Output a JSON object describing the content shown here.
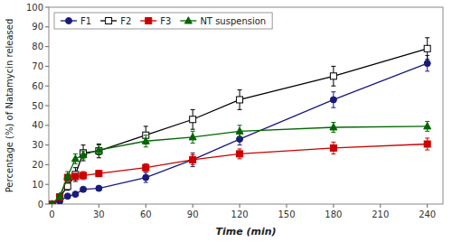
{
  "chart_data": {
    "type": "line",
    "xlabel": "Time (min)",
    "ylabel": "Percentage (%) of Natamycin released",
    "x": [
      0,
      5,
      10,
      15,
      20,
      30,
      60,
      90,
      120,
      180,
      240
    ],
    "xlim": [
      -2,
      250
    ],
    "xticks": [
      0,
      30,
      60,
      90,
      120,
      150,
      180,
      210,
      240
    ],
    "ylim": [
      0,
      100
    ],
    "yticks": [
      0,
      10,
      20,
      30,
      40,
      50,
      60,
      70,
      80,
      90,
      100
    ],
    "grid": false,
    "legend": "upper left",
    "series": [
      {
        "name": "F1",
        "color": "#1a1a7a",
        "marker": "circle",
        "values": [
          0,
          1.5,
          4.0,
          5.0,
          7.5,
          8.0,
          13.5,
          22.5,
          33.0,
          53.0,
          71.5
        ],
        "errors": [
          0,
          0.5,
          0.5,
          0.8,
          1.0,
          1.0,
          2.5,
          3.5,
          3.0,
          4.0,
          4.0
        ]
      },
      {
        "name": "F2",
        "color": "#000000",
        "marker": "square-open",
        "values": [
          0,
          3.5,
          9.0,
          15.0,
          26.0,
          27.0,
          35.0,
          43.0,
          53.0,
          65.0,
          79.0
        ],
        "errors": [
          0,
          1.0,
          2.0,
          3.5,
          4.0,
          3.5,
          4.5,
          5.0,
          5.0,
          5.0,
          5.5
        ]
      },
      {
        "name": "F3",
        "color": "#cc0000",
        "marker": "square",
        "values": [
          0,
          3.5,
          13.5,
          14.0,
          14.5,
          15.5,
          18.5,
          22.5,
          25.5,
          28.5,
          30.5
        ],
        "errors": [
          0,
          1.0,
          1.5,
          1.5,
          2.0,
          1.5,
          2.0,
          2.5,
          2.5,
          3.0,
          3.0
        ]
      },
      {
        "name": "NT suspension",
        "color": "#006600",
        "marker": "triangle",
        "values": [
          0,
          4.0,
          14.0,
          23.0,
          25.0,
          27.5,
          32.0,
          34.0,
          37.0,
          39.0,
          39.5
        ],
        "errors": [
          0,
          1.0,
          2.5,
          2.5,
          2.0,
          2.5,
          3.0,
          3.0,
          3.0,
          2.5,
          2.5
        ]
      }
    ]
  }
}
